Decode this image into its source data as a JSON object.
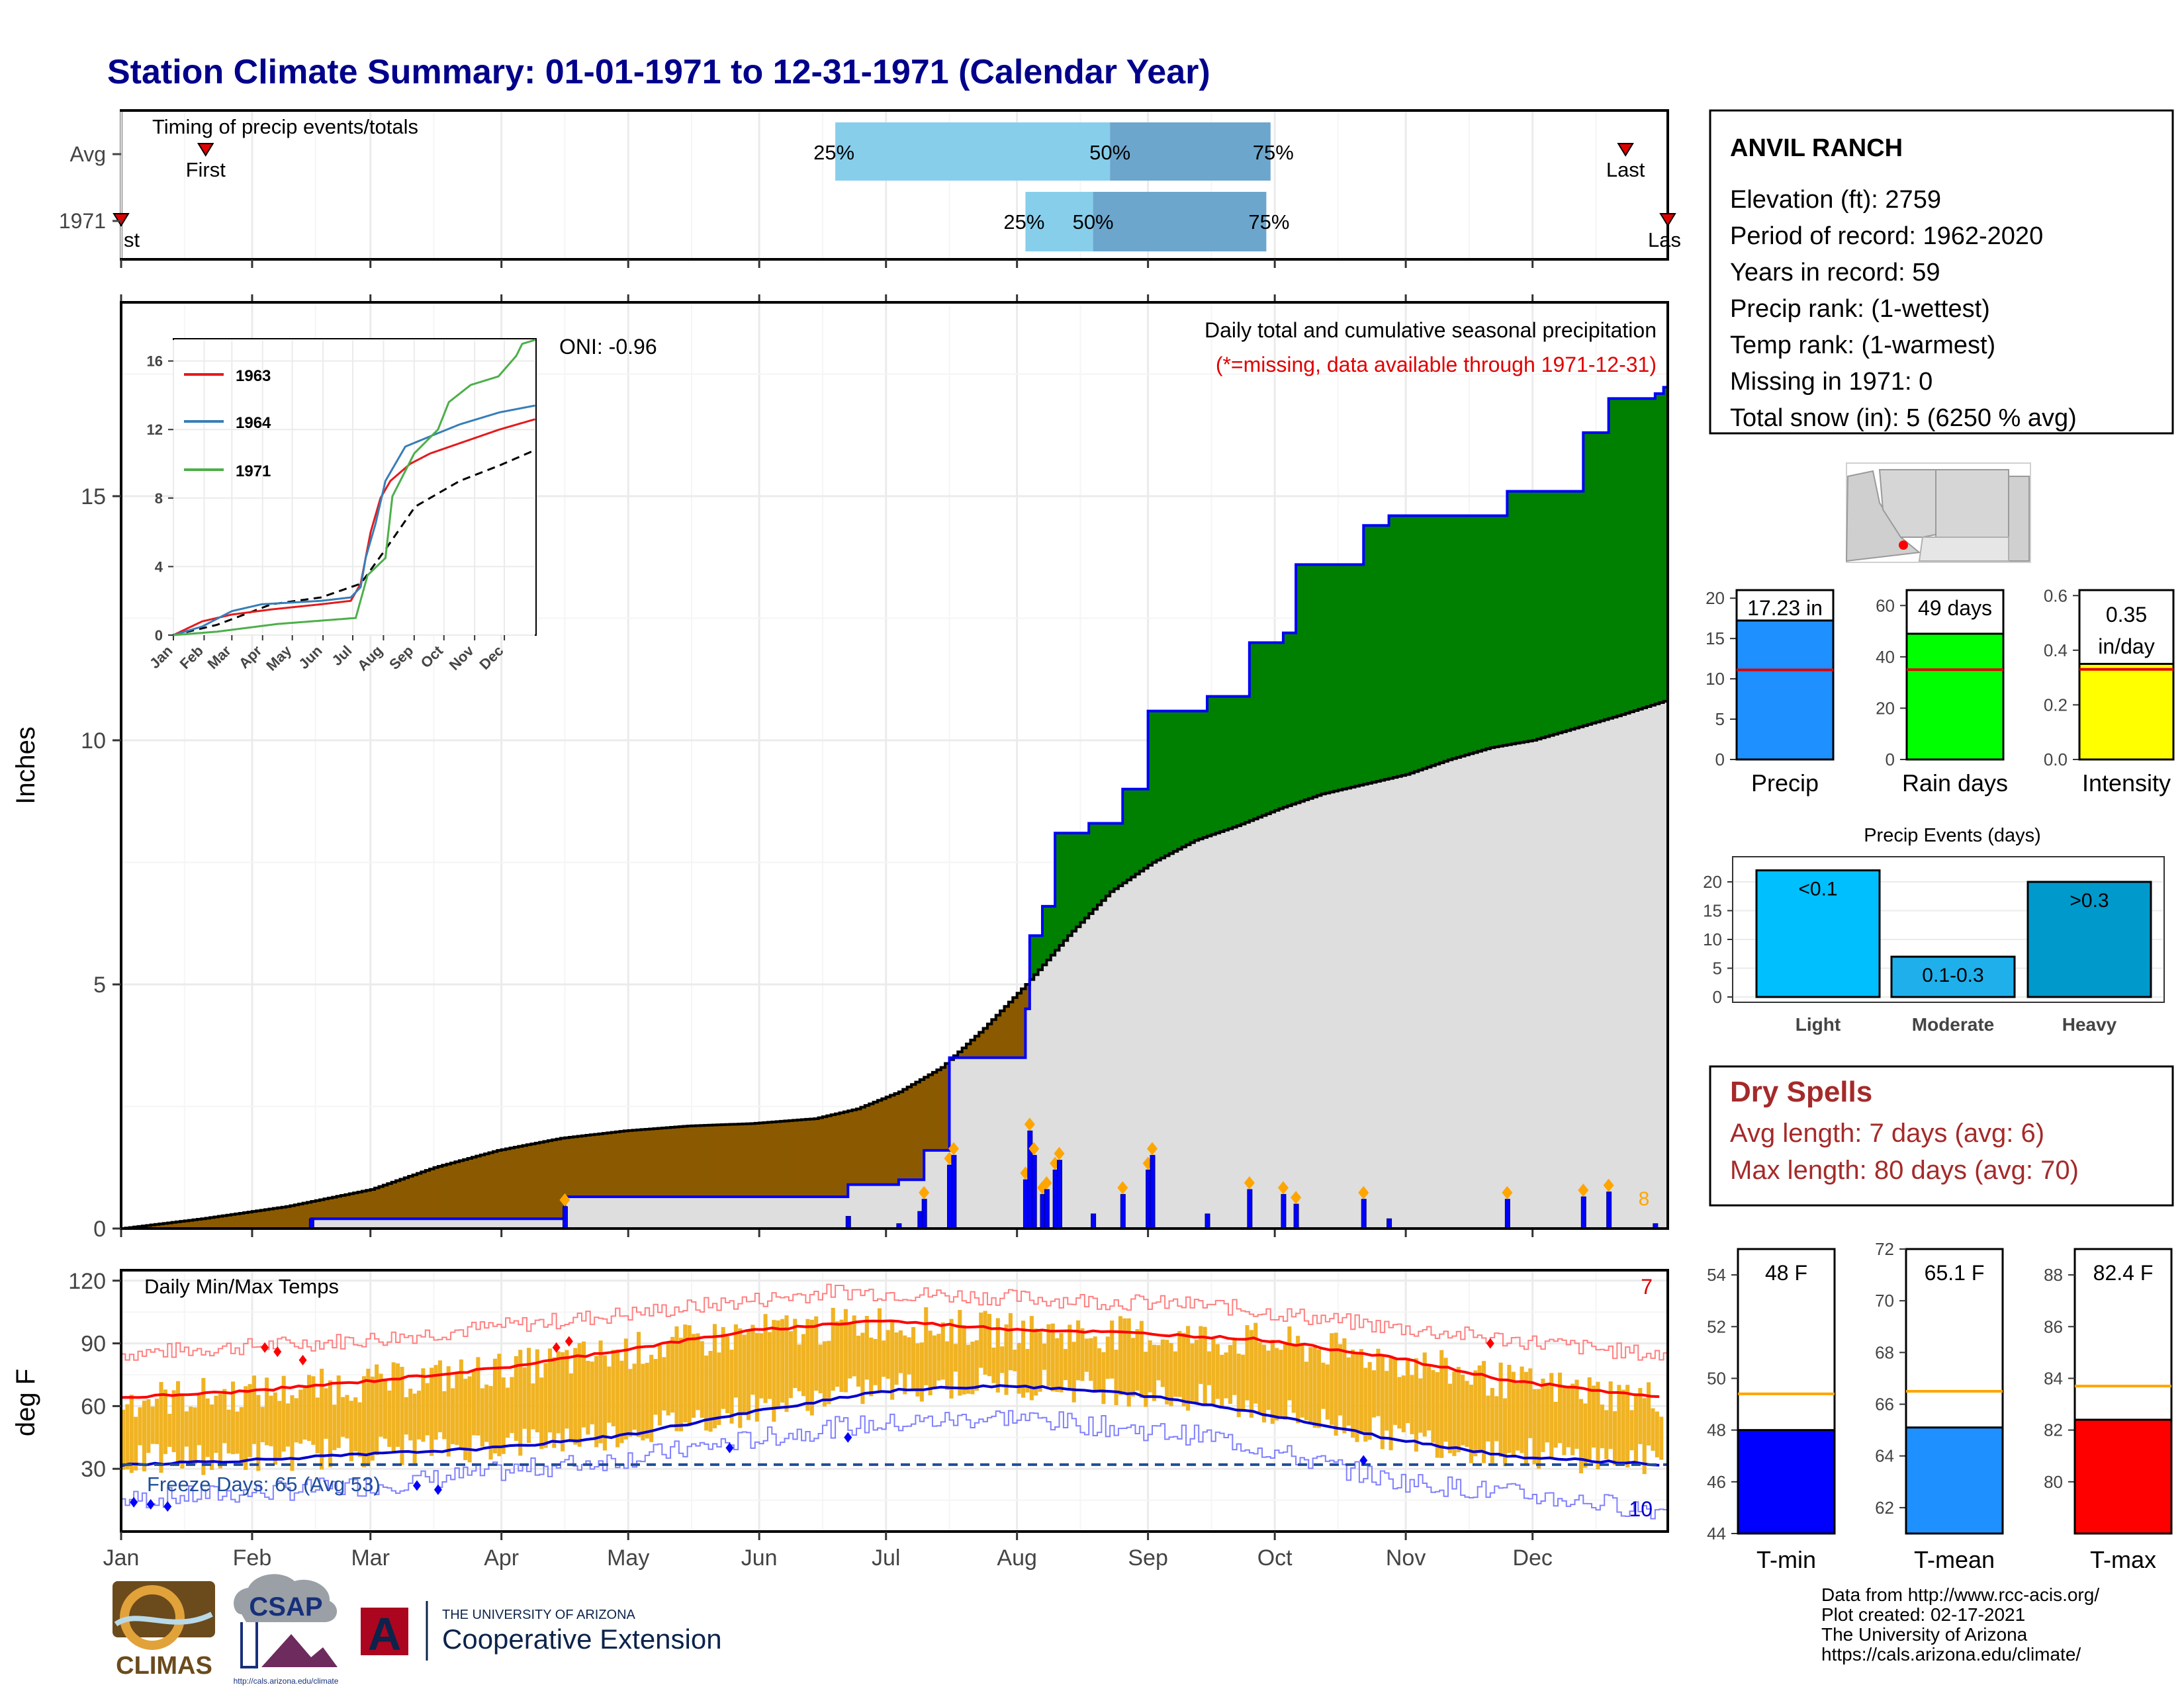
{
  "title": "Station Climate Summary: 01-01-1971 to 12-31-1971 (Calendar Year)",
  "months": [
    "Jan",
    "Feb",
    "Mar",
    "Apr",
    "May",
    "Jun",
    "Jul",
    "Aug",
    "Sep",
    "Oct",
    "Nov",
    "Dec"
  ],
  "timing": {
    "title": "Timing of precip events/totals",
    "rows": [
      "Avg",
      "1971"
    ],
    "avg": {
      "first_doy": 21,
      "last_doy": 357,
      "p25_doy": 170,
      "p50_doy": 235,
      "p75_doy": 273
    },
    "year": {
      "first_doy": 1,
      "last_doy": 367,
      "p25_doy": 215,
      "p50_doy": 231,
      "p75_doy": 272
    },
    "labels": {
      "first": "First",
      "first_cut": "st",
      "last": "Last",
      "last_cut": "Las",
      "p25": "25%",
      "p50": "50%",
      "p75": "75%"
    }
  },
  "precip_panel": {
    "ylabel": "Inches",
    "title": "Daily total and cumulative seasonal precipitation",
    "missing_note": "(*=missing, data available through 1971-12-31)",
    "oni": "ONI: -0.96",
    "top_count": "8",
    "yticks": [
      "0",
      "5",
      "10",
      "15"
    ]
  },
  "inset": {
    "yticks": [
      "0",
      "4",
      "8",
      "12",
      "16"
    ],
    "xticks": [
      "Jan",
      "Feb",
      "Mar",
      "Apr",
      "May",
      "Jun",
      "Jul",
      "Aug",
      "Sep",
      "Oct",
      "Nov",
      "Dec"
    ],
    "legend": [
      "1963",
      "1964",
      "1971"
    ]
  },
  "temp_panel": {
    "ylabel": "deg F",
    "title": "Daily Min/Max Temps",
    "freeze": "Freeze Days: 65 (Avg 53)",
    "hot_count": "7",
    "cold_count": "10",
    "yticks": [
      "30",
      "60",
      "90",
      "120"
    ]
  },
  "station": {
    "name": "ANVIL RANCH",
    "lines": [
      "Elevation (ft): 2759",
      "Period of record: 1962-2020",
      "Years in record: 59",
      "Precip rank:  (1-wettest)",
      "Temp rank:  (1-warmest)",
      "Missing in 1971: 0",
      "Total snow (in): 5 (6250 % avg)"
    ]
  },
  "summary_bars": [
    {
      "label": "Precip",
      "value_label": "17.23 in",
      "value": 17.23,
      "avg": 11.1,
      "ymax": 21,
      "ticks": [
        "0",
        "5",
        "10",
        "15",
        "20"
      ],
      "color": "#1e90ff"
    },
    {
      "label": "Rain days",
      "value_label": "49 days",
      "value": 49,
      "avg": 35,
      "ymax": 66,
      "ticks": [
        "0",
        "20",
        "40",
        "60"
      ],
      "color": "#00ff00"
    },
    {
      "label": "Intensity",
      "value_label_1": "0.35",
      "value_label_2": "in/day",
      "value": 0.35,
      "avg": 0.33,
      "ymax": 0.62,
      "ticks": [
        "0.0",
        "0.2",
        "0.4",
        "0.6"
      ],
      "color": "#ffff00"
    }
  ],
  "events": {
    "title": "Precip Events (days)",
    "ticks": [
      "0",
      "5",
      "10",
      "15",
      "20"
    ],
    "bars": [
      {
        "label": "Light",
        "inner": "<0.1",
        "value": 22,
        "color": "#00bfff"
      },
      {
        "label": "Moderate",
        "inner": "0.1-0.3",
        "value": 7,
        "color": "#1fb0ec"
      },
      {
        "label": "Heavy",
        "inner": ">0.3",
        "value": 20,
        "color": "#0099cc"
      }
    ]
  },
  "dry_spells": {
    "title": "Dry Spells",
    "avg": "Avg length: 7 days (avg: 6)",
    "max": "Max length: 80 days (avg: 70)"
  },
  "temp_bars": [
    {
      "label": "T-min",
      "value_label": "48 F",
      "value": 48,
      "avg": 49.4,
      "ymin": 44,
      "ymax": 55,
      "ticks": [
        "44",
        "46",
        "48",
        "50",
        "52",
        "54"
      ],
      "color": "#0000ff"
    },
    {
      "label": "T-mean",
      "value_label": "65.1 F",
      "value": 65.1,
      "avg": 66.5,
      "ymin": 61,
      "ymax": 72,
      "ticks": [
        "62",
        "64",
        "66",
        "68",
        "70",
        "72"
      ],
      "color": "#1e90ff"
    },
    {
      "label": "T-max",
      "value_label": "82.4 F",
      "value": 82.4,
      "avg": 83.7,
      "ymin": 78,
      "ymax": 89,
      "ticks": [
        "80",
        "82",
        "84",
        "86",
        "88"
      ],
      "color": "#ff0000"
    }
  ],
  "credits": [
    "Data from http://www.rcc-acis.org/",
    "Plot created: 02-17-2021",
    "The University of Arizona",
    "https://cals.arizona.edu/climate/"
  ],
  "logos": {
    "climas": "CLIMAS",
    "csap": "CSAP",
    "csap_url": "http://cals.arizona.edu/climate",
    "ua_small": "THE UNIVERSITY OF ARIZONA",
    "ua_big": "Cooperative Extension",
    "ua_letter": "A"
  },
  "chart_data": {
    "type": "area",
    "xlabel": "",
    "ylabel": "Inches",
    "cumulative_1971_in": [
      [
        1,
        0
      ],
      [
        45,
        0
      ],
      [
        46,
        0.2
      ],
      [
        105,
        0.2
      ],
      [
        106,
        0.65
      ],
      [
        172,
        0.65
      ],
      [
        173,
        0.9
      ],
      [
        184,
        0.9
      ],
      [
        185,
        1.0
      ],
      [
        190,
        1.0
      ],
      [
        191,
        1.6
      ],
      [
        196,
        1.6
      ],
      [
        197,
        3.5
      ],
      [
        214,
        3.5
      ],
      [
        215,
        4.5
      ],
      [
        216,
        6.0
      ],
      [
        219,
        6.6
      ],
      [
        222,
        8.1
      ],
      [
        229,
        8.1
      ],
      [
        230,
        8.3
      ],
      [
        237,
        8.3
      ],
      [
        238,
        9.0
      ],
      [
        243,
        9.0
      ],
      [
        244,
        10.6
      ],
      [
        257,
        10.6
      ],
      [
        258,
        10.9
      ],
      [
        267,
        10.9
      ],
      [
        268,
        12.0
      ],
      [
        275,
        12.0
      ],
      [
        276,
        12.2
      ],
      [
        279,
        13.6
      ],
      [
        294,
        13.6
      ],
      [
        295,
        14.4
      ],
      [
        300,
        14.4
      ],
      [
        301,
        14.6
      ],
      [
        328,
        14.6
      ],
      [
        329,
        15.1
      ],
      [
        346,
        15.1
      ],
      [
        347,
        16.3
      ],
      [
        352,
        16.3
      ],
      [
        353,
        17.0
      ],
      [
        363,
        17.0
      ],
      [
        364,
        17.1
      ],
      [
        366,
        17.23
      ]
    ],
    "cumulative_avg_in": [
      [
        1,
        0
      ],
      [
        20,
        0.2
      ],
      [
        40,
        0.45
      ],
      [
        60,
        0.8
      ],
      [
        75,
        1.25
      ],
      [
        90,
        1.6
      ],
      [
        105,
        1.85
      ],
      [
        120,
        2.0
      ],
      [
        135,
        2.1
      ],
      [
        150,
        2.15
      ],
      [
        165,
        2.25
      ],
      [
        175,
        2.45
      ],
      [
        185,
        2.8
      ],
      [
        195,
        3.3
      ],
      [
        205,
        4.1
      ],
      [
        215,
        5.0
      ],
      [
        225,
        6.0
      ],
      [
        235,
        6.9
      ],
      [
        245,
        7.5
      ],
      [
        255,
        7.95
      ],
      [
        265,
        8.25
      ],
      [
        275,
        8.6
      ],
      [
        285,
        8.9
      ],
      [
        295,
        9.1
      ],
      [
        305,
        9.3
      ],
      [
        315,
        9.6
      ],
      [
        325,
        9.85
      ],
      [
        335,
        10.0
      ],
      [
        345,
        10.25
      ],
      [
        355,
        10.5
      ],
      [
        366,
        10.8
      ]
    ],
    "daily_precip_in": [
      [
        46,
        0.2
      ],
      [
        106,
        0.45
      ],
      [
        173,
        0.25
      ],
      [
        185,
        0.1
      ],
      [
        190,
        0.35
      ],
      [
        191,
        0.6
      ],
      [
        197,
        1.3
      ],
      [
        198,
        1.5
      ],
      [
        215,
        1.0
      ],
      [
        216,
        2.0
      ],
      [
        217,
        1.5
      ],
      [
        219,
        0.7
      ],
      [
        220,
        0.8
      ],
      [
        222,
        1.2
      ],
      [
        223,
        1.4
      ],
      [
        231,
        0.3
      ],
      [
        238,
        0.7
      ],
      [
        244,
        1.2
      ],
      [
        245,
        1.5
      ],
      [
        258,
        0.3
      ],
      [
        268,
        0.8
      ],
      [
        276,
        0.7
      ],
      [
        279,
        0.5
      ],
      [
        295,
        0.6
      ],
      [
        301,
        0.2
      ],
      [
        329,
        0.6
      ],
      [
        347,
        0.65
      ],
      [
        353,
        0.75
      ],
      [
        364,
        0.1
      ]
    ],
    "inset_cumulative": {
      "1963": [
        [
          1,
          0
        ],
        [
          30,
          0.8
        ],
        [
          60,
          1.2
        ],
        [
          100,
          1.5
        ],
        [
          150,
          1.8
        ],
        [
          180,
          2.0
        ],
        [
          190,
          3.0
        ],
        [
          195,
          4.5
        ],
        [
          200,
          6.0
        ],
        [
          210,
          8.0
        ],
        [
          220,
          9.0
        ],
        [
          240,
          10.0
        ],
        [
          260,
          10.6
        ],
        [
          280,
          11.0
        ],
        [
          300,
          11.4
        ],
        [
          330,
          12.0
        ],
        [
          366,
          12.6
        ]
      ],
      "1964": [
        [
          1,
          0
        ],
        [
          30,
          0.5
        ],
        [
          60,
          1.4
        ],
        [
          90,
          1.8
        ],
        [
          150,
          2.0
        ],
        [
          180,
          2.2
        ],
        [
          190,
          2.8
        ],
        [
          195,
          4.5
        ],
        [
          205,
          6.5
        ],
        [
          215,
          9.0
        ],
        [
          235,
          11.0
        ],
        [
          260,
          11.6
        ],
        [
          290,
          12.3
        ],
        [
          330,
          13.0
        ],
        [
          366,
          13.4
        ]
      ],
      "1971": [
        [
          1,
          0
        ],
        [
          45,
          0.2
        ],
        [
          106,
          0.65
        ],
        [
          185,
          1.0
        ],
        [
          197,
          3.5
        ],
        [
          215,
          4.5
        ],
        [
          222,
          8.1
        ],
        [
          244,
          10.6
        ],
        [
          268,
          12.0
        ],
        [
          279,
          13.6
        ],
        [
          301,
          14.6
        ],
        [
          329,
          15.1
        ],
        [
          347,
          16.3
        ],
        [
          353,
          17.0
        ],
        [
          366,
          17.23
        ]
      ],
      "avg": [
        [
          1,
          0
        ],
        [
          45,
          0.6
        ],
        [
          100,
          1.8
        ],
        [
          150,
          2.2
        ],
        [
          190,
          3.0
        ],
        [
          215,
          5.0
        ],
        [
          245,
          7.5
        ],
        [
          290,
          9.0
        ],
        [
          330,
          9.9
        ],
        [
          366,
          10.8
        ]
      ]
    },
    "temp_normals_F": {
      "avg_max": [
        [
          1,
          64
        ],
        [
          30,
          67
        ],
        [
          60,
          72
        ],
        [
          90,
          78
        ],
        [
          120,
          87
        ],
        [
          150,
          96
        ],
        [
          180,
          101
        ],
        [
          210,
          97
        ],
        [
          240,
          95
        ],
        [
          270,
          92
        ],
        [
          300,
          84
        ],
        [
          330,
          72
        ],
        [
          366,
          64
        ]
      ],
      "avg_min": [
        [
          1,
          32
        ],
        [
          30,
          34
        ],
        [
          60,
          37
        ],
        [
          90,
          40
        ],
        [
          120,
          46
        ],
        [
          150,
          57
        ],
        [
          180,
          67
        ],
        [
          210,
          70
        ],
        [
          240,
          66
        ],
        [
          270,
          57
        ],
        [
          300,
          45
        ],
        [
          330,
          36
        ],
        [
          366,
          32
        ]
      ],
      "record_max": [
        [
          1,
          85
        ],
        [
          60,
          92
        ],
        [
          120,
          104
        ],
        [
          170,
          115
        ],
        [
          210,
          112
        ],
        [
          260,
          108
        ],
        [
          300,
          98
        ],
        [
          366,
          84
        ]
      ],
      "record_min": [
        [
          1,
          15
        ],
        [
          60,
          22
        ],
        [
          120,
          35
        ],
        [
          170,
          50
        ],
        [
          210,
          55
        ],
        [
          260,
          45
        ],
        [
          300,
          25
        ],
        [
          366,
          10
        ]
      ],
      "freeze_line": 32
    },
    "temp_range": [
      0,
      125
    ]
  }
}
